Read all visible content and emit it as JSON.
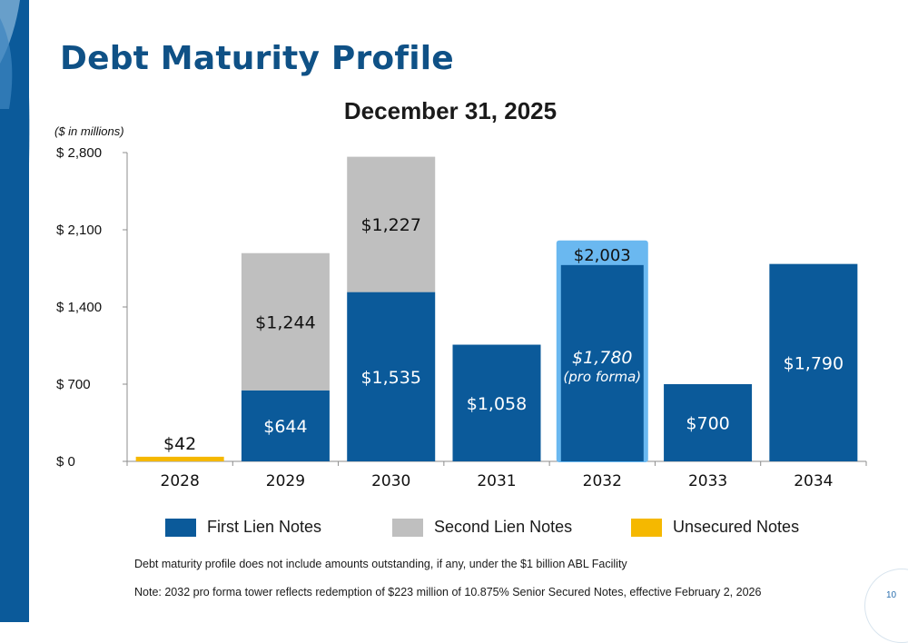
{
  "slide": {
    "title": "Debt Maturity Profile",
    "page_number": "10"
  },
  "chart_data": {
    "type": "bar",
    "title": "December 31, 2025",
    "units_note": "($ in millions)",
    "categories": [
      "2028",
      "2029",
      "2030",
      "2031",
      "2032",
      "2033",
      "2034"
    ],
    "ylim": [
      0,
      2800
    ],
    "yticks": [
      0,
      700,
      1400,
      2100,
      2800
    ],
    "ytick_labels": [
      "$ 0",
      "$ 700",
      "$ 1,400",
      "$ 2,100",
      "$ 2,800"
    ],
    "stacked": true,
    "grid": false,
    "legend_position": "bottom",
    "series": [
      {
        "name": "First Lien Notes",
        "color": "#0b5a9a",
        "values": [
          0,
          644,
          1535,
          1058,
          1780,
          700,
          1790
        ],
        "labels": [
          "",
          "$644",
          "$1,535",
          "$1,058",
          "$1,780",
          "$700",
          "$1,790"
        ]
      },
      {
        "name": "Second Lien Notes",
        "color": "#bfbfbf",
        "values": [
          0,
          1244,
          1227,
          0,
          0,
          0,
          0
        ],
        "labels": [
          "",
          "$1,244",
          "$1,227",
          "",
          "",
          "",
          ""
        ]
      },
      {
        "name": "Unsecured Notes",
        "color": "#f5b800",
        "values": [
          42,
          0,
          0,
          0,
          0,
          0,
          0
        ],
        "labels": [
          "$42",
          "",
          "",
          "",
          "",
          "",
          ""
        ]
      }
    ],
    "annotations": [
      {
        "category": "2032",
        "outline_color": "#6ab8f0",
        "total_value": 2003,
        "total_label": "$2,003",
        "note": "(pro forma)"
      }
    ]
  },
  "footnotes": [
    "Debt maturity profile does not include amounts outstanding, if any, under the $1 billion ABL Facility",
    "Note: 2032 pro forma tower reflects redemption of $223 million of 10.875% Senior Secured Notes, effective February 2, 2026"
  ]
}
